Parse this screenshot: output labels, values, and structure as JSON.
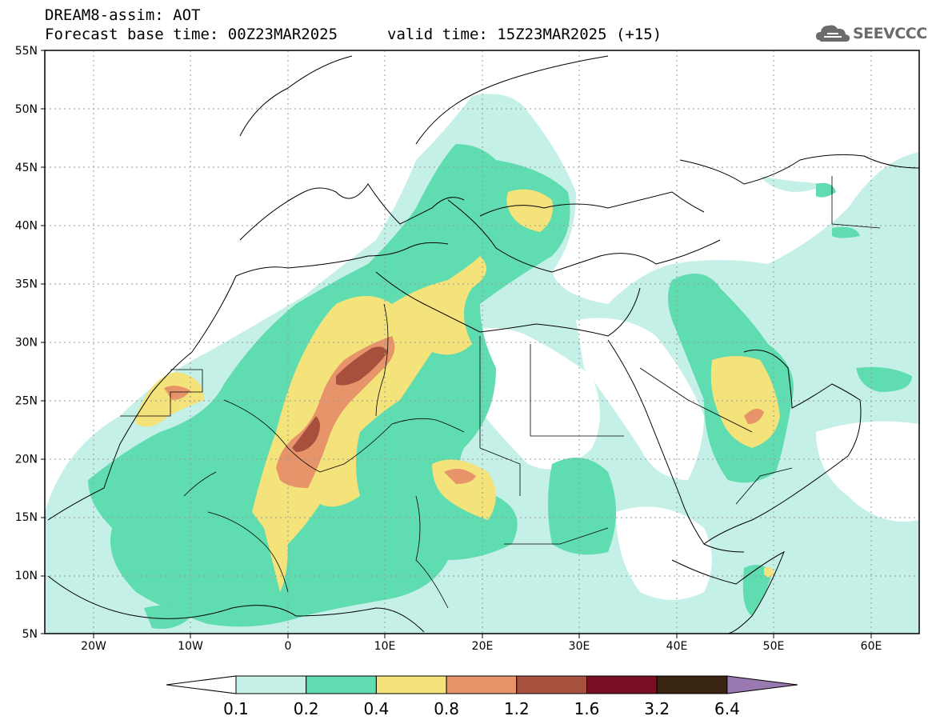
{
  "title": {
    "line1": "DREAM8-assim: AOT",
    "line2": "Forecast base time: 00Z23MAR2025",
    "valid": "valid time: 15Z23MAR2025 (+15)"
  },
  "logo": {
    "text": "SEEVCCC",
    "icon": "cloud-icon"
  },
  "map": {
    "lon_range": [
      -25,
      65
    ],
    "lat_range": [
      5,
      55
    ],
    "lat_ticks": [
      "55N",
      "50N",
      "45N",
      "40N",
      "35N",
      "30N",
      "25N",
      "20N",
      "15N",
      "10N",
      "5N"
    ],
    "lon_ticks": [
      "20W",
      "10W",
      "0",
      "10E",
      "20E",
      "30E",
      "40E",
      "50E",
      "60E"
    ],
    "grid": true
  },
  "colorbar": {
    "labels": [
      "0.1",
      "0.2",
      "0.4",
      "0.8",
      "1.2",
      "1.6",
      "3.2",
      "6.4"
    ],
    "colors": [
      "#ffffff",
      "#c4f0e8",
      "#5fdcb0",
      "#f4e27a",
      "#e8946a",
      "#a8503e",
      "#7a0e24",
      "#3a2412",
      "#9a78b0"
    ]
  }
}
